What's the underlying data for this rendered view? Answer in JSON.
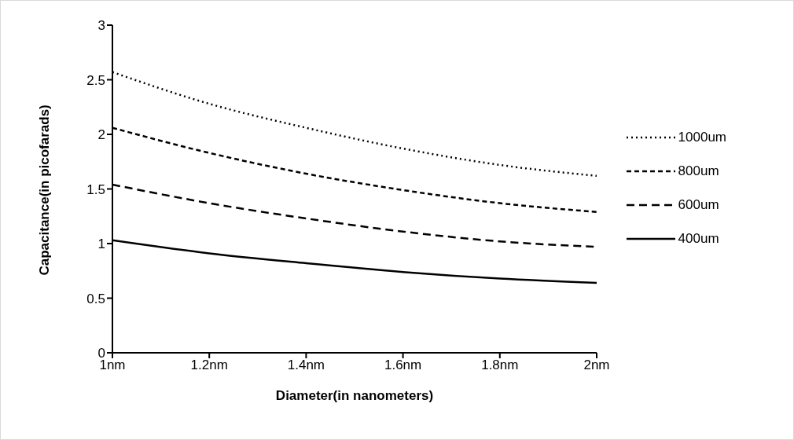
{
  "chart_data": {
    "type": "line",
    "xlabel": "Diameter(in nanometers)",
    "ylabel": "Capacitance(in picofarads)",
    "x": [
      1,
      1.2,
      1.4,
      1.6,
      1.8,
      2
    ],
    "xlim": [
      1,
      2
    ],
    "xticks": [
      {
        "value": 1,
        "label": "1nm"
      },
      {
        "value": 1.2,
        "label": "1.2nm"
      },
      {
        "value": 1.4,
        "label": "1.4nm"
      },
      {
        "value": 1.6,
        "label": "1.6nm"
      },
      {
        "value": 1.8,
        "label": "1.8nm"
      },
      {
        "value": 2,
        "label": "2nm"
      }
    ],
    "ylim": [
      0,
      3
    ],
    "yticks": [
      0,
      0.5,
      1,
      1.5,
      2,
      2.5,
      3
    ],
    "grid": false,
    "legend": "right",
    "marker": "none",
    "series": [
      {
        "name": "1000um",
        "color": "#000000",
        "line_style": "dotted",
        "values": [
          2.57,
          2.28,
          2.06,
          1.87,
          1.72,
          1.62
        ]
      },
      {
        "name": "800um",
        "color": "#000000",
        "line_style": "dashed",
        "values": [
          2.06,
          1.83,
          1.64,
          1.49,
          1.37,
          1.29
        ]
      },
      {
        "name": "600um",
        "color": "#000000",
        "line_style": "dashed",
        "values": [
          1.54,
          1.37,
          1.23,
          1.11,
          1.02,
          0.97
        ]
      },
      {
        "name": "400um",
        "color": "#000000",
        "line_style": "solid",
        "values": [
          1.03,
          0.91,
          0.82,
          0.74,
          0.68,
          0.64
        ]
      }
    ]
  }
}
